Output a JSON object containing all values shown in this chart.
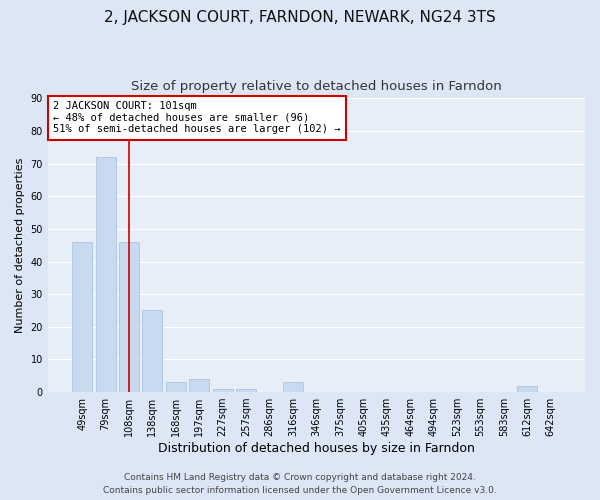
{
  "title": "2, JACKSON COURT, FARNDON, NEWARK, NG24 3TS",
  "subtitle": "Size of property relative to detached houses in Farndon",
  "xlabel": "Distribution of detached houses by size in Farndon",
  "ylabel": "Number of detached properties",
  "bar_labels": [
    "49sqm",
    "79sqm",
    "108sqm",
    "138sqm",
    "168sqm",
    "197sqm",
    "227sqm",
    "257sqm",
    "286sqm",
    "316sqm",
    "346sqm",
    "375sqm",
    "405sqm",
    "435sqm",
    "464sqm",
    "494sqm",
    "523sqm",
    "553sqm",
    "583sqm",
    "612sqm",
    "642sqm"
  ],
  "bar_values": [
    46,
    72,
    46,
    25,
    3,
    4,
    1,
    1,
    0,
    3,
    0,
    0,
    0,
    0,
    0,
    0,
    0,
    0,
    0,
    2,
    0
  ],
  "bar_color": "#c8daf0",
  "bar_edge_color": "#aac4e0",
  "vline_x": 2,
  "vline_color": "#cc0000",
  "annotation_text": "2 JACKSON COURT: 101sqm\n← 48% of detached houses are smaller (96)\n51% of semi-detached houses are larger (102) →",
  "annotation_box_color": "#ffffff",
  "annotation_box_edge_color": "#cc0000",
  "ylim": [
    0,
    90
  ],
  "yticks": [
    0,
    10,
    20,
    30,
    40,
    50,
    60,
    70,
    80,
    90
  ],
  "bg_color": "#dce6f5",
  "plot_bg_color": "#e8eef8",
  "grid_color": "#ffffff",
  "footer_line1": "Contains HM Land Registry data © Crown copyright and database right 2024.",
  "footer_line2": "Contains public sector information licensed under the Open Government Licence v3.0.",
  "title_fontsize": 11,
  "subtitle_fontsize": 9.5,
  "xlabel_fontsize": 9,
  "ylabel_fontsize": 8,
  "tick_fontsize": 7,
  "annotation_fontsize": 7.5,
  "footer_fontsize": 6.5
}
